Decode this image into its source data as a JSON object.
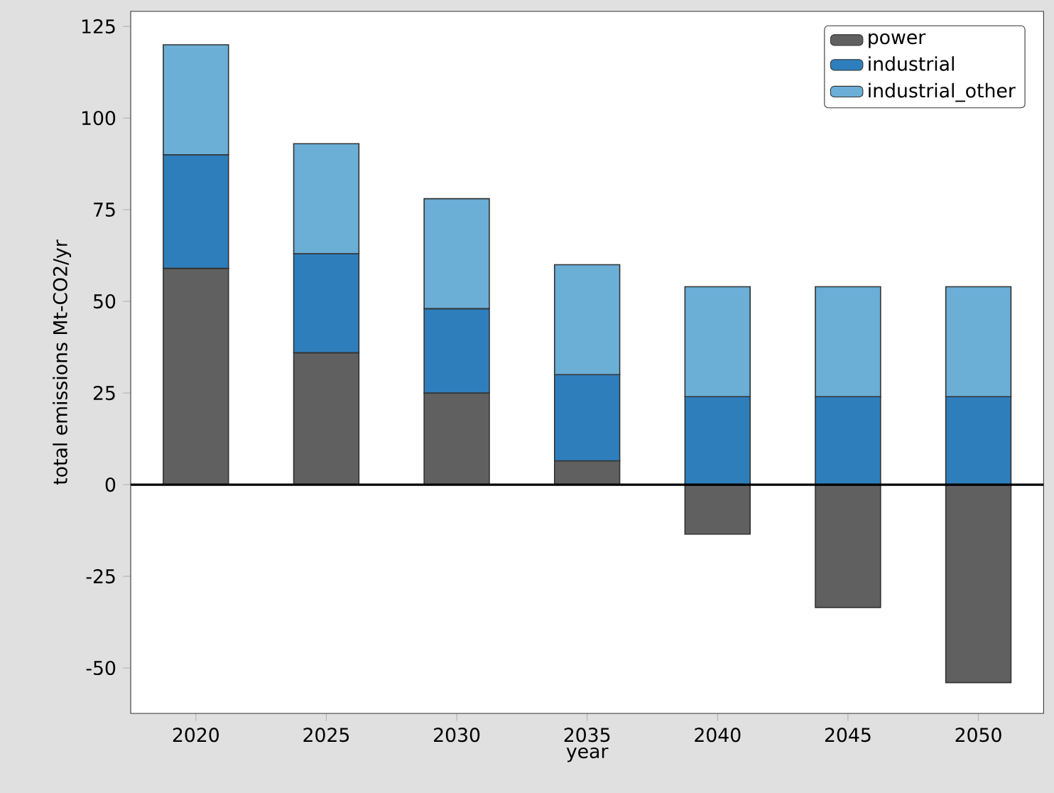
{
  "chart_data": {
    "type": "bar",
    "stacked": true,
    "xlabel": "year",
    "ylabel": "total emissions Mt-CO2/yr",
    "categories": [
      "2020",
      "2025",
      "2030",
      "2035",
      "2040",
      "2045",
      "2050"
    ],
    "series": [
      {
        "name": "power",
        "color": "#606060",
        "values": [
          59,
          36,
          25,
          6.5,
          -13.5,
          -33.5,
          -54
        ]
      },
      {
        "name": "industrial",
        "color": "#2e7ebc",
        "values": [
          31,
          27,
          23,
          23.5,
          24,
          24,
          24
        ]
      },
      {
        "name": "industrial_other",
        "color": "#6baed6",
        "values": [
          30,
          30,
          30,
          30,
          30,
          30,
          30
        ]
      }
    ],
    "ylim": [
      -62.4,
      129.1
    ],
    "yticks": [
      -50,
      -25,
      0,
      25,
      50,
      75,
      100,
      125
    ],
    "ref_lines": [
      {
        "axis": "y",
        "value": 0,
        "color": "#000000"
      }
    ],
    "legend": "top right"
  }
}
